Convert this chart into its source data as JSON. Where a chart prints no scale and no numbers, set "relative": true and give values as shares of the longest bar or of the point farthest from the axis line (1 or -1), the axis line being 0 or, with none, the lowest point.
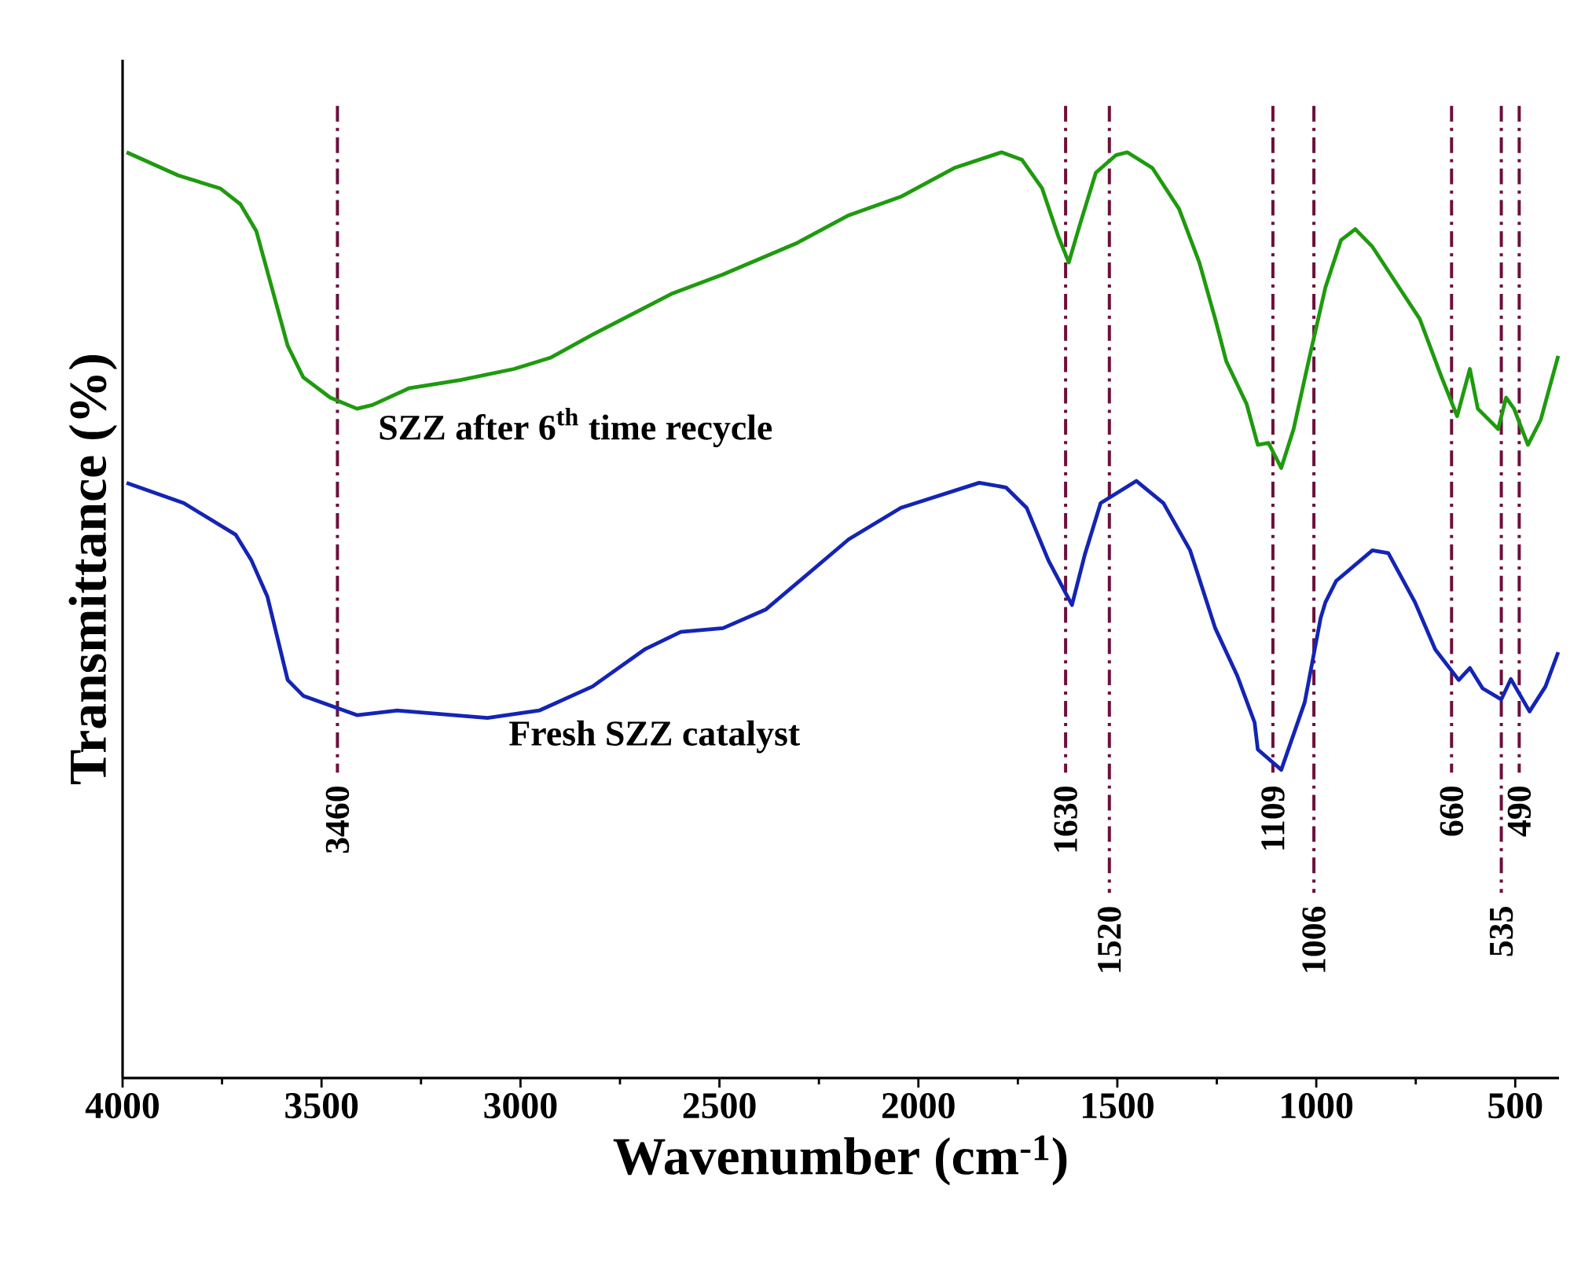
{
  "chart_data": {
    "type": "line",
    "relative": true,
    "xlabel": "Wavenumber (cm$^{-1}$)",
    "ylabel": "Transmittance (%)",
    "xlim": [
      4000,
      390
    ],
    "xticks": [
      4000,
      3500,
      3000,
      2500,
      2000,
      1500,
      1000,
      500
    ],
    "series": [
      {
        "name": "SZZ after 6$^{th}$ time recycle",
        "color": "#1f9a0f",
        "x": [
          3990,
          3860,
          3755,
          3704,
          3664,
          3625,
          3585,
          3546,
          3478,
          3411,
          3372,
          3281,
          3151,
          3016,
          2925,
          2819,
          2621,
          2491,
          2305,
          2175,
          2044,
          1910,
          1791,
          1740,
          1689,
          1649,
          1622,
          1594,
          1554,
          1503,
          1475,
          1412,
          1345,
          1294,
          1254,
          1226,
          1175,
          1147,
          1120,
          1088,
          1057,
          1017,
          977,
          938,
          902,
          859,
          792,
          740,
          685,
          646,
          614,
          594,
          543,
          523,
          503,
          468,
          436,
          392
        ],
        "values": [
          1.0,
          0.975,
          0.961,
          0.944,
          0.915,
          0.854,
          0.791,
          0.757,
          0.735,
          0.723,
          0.727,
          0.745,
          0.754,
          0.766,
          0.778,
          0.803,
          0.847,
          0.868,
          0.902,
          0.932,
          0.952,
          0.983,
          1.0,
          0.992,
          0.961,
          0.91,
          0.881,
          0.922,
          0.978,
          0.997,
          1.0,
          0.983,
          0.939,
          0.881,
          0.82,
          0.774,
          0.728,
          0.684,
          0.686,
          0.659,
          0.701,
          0.779,
          0.854,
          0.905,
          0.917,
          0.898,
          0.854,
          0.82,
          0.757,
          0.715,
          0.766,
          0.723,
          0.701,
          0.735,
          0.723,
          0.684,
          0.711,
          0.78
        ]
      },
      {
        "name": "Fresh SZZ catalyst",
        "color": "#1424b4",
        "x": [
          3990,
          3846,
          3716,
          3676,
          3636,
          3585,
          3546,
          3411,
          3309,
          3083,
          2953,
          2819,
          2688,
          2597,
          2491,
          2384,
          2175,
          2044,
          1847,
          1780,
          1728,
          1673,
          1614,
          1582,
          1542,
          1452,
          1384,
          1317,
          1254,
          1199,
          1155,
          1147,
          1088,
          1029,
          989,
          977,
          950,
          859,
          819,
          752,
          701,
          642,
          614,
          582,
          535,
          511,
          464,
          424,
          392
        ],
        "values": [
          0.643,
          0.621,
          0.587,
          0.559,
          0.52,
          0.43,
          0.413,
          0.392,
          0.397,
          0.389,
          0.397,
          0.423,
          0.463,
          0.482,
          0.486,
          0.506,
          0.582,
          0.616,
          0.643,
          0.638,
          0.616,
          0.559,
          0.511,
          0.565,
          0.621,
          0.645,
          0.621,
          0.57,
          0.486,
          0.435,
          0.384,
          0.355,
          0.333,
          0.406,
          0.497,
          0.514,
          0.537,
          0.57,
          0.567,
          0.514,
          0.463,
          0.43,
          0.443,
          0.421,
          0.409,
          0.431,
          0.396,
          0.423,
          0.46
        ]
      }
    ],
    "ref_lines": [
      {
        "axis": "x",
        "value": 3460,
        "label": "3460",
        "color": "#6d0f3b",
        "line_style": "dashdot"
      },
      {
        "axis": "x",
        "value": 1630,
        "label": "1630",
        "color": "#6d0f3b",
        "line_style": "dashdot"
      },
      {
        "axis": "x",
        "value": 1520,
        "label": "1520",
        "color": "#6d0f3b",
        "line_style": "dashdot"
      },
      {
        "axis": "x",
        "value": 1109,
        "label": "1109",
        "color": "#6d0f3b",
        "line_style": "dashdot"
      },
      {
        "axis": "x",
        "value": 1006,
        "label": "1006",
        "color": "#6d0f3b",
        "line_style": "dashdot"
      },
      {
        "axis": "x",
        "value": 660,
        "label": "660",
        "color": "#6d0f3b",
        "line_style": "dashdot"
      },
      {
        "axis": "x",
        "value": 535,
        "label": "535",
        "color": "#6d0f3b",
        "line_style": "dashdot"
      },
      {
        "axis": "x",
        "value": 490,
        "label": "490",
        "color": "#6d0f3b",
        "line_style": "dashdot"
      }
    ]
  }
}
